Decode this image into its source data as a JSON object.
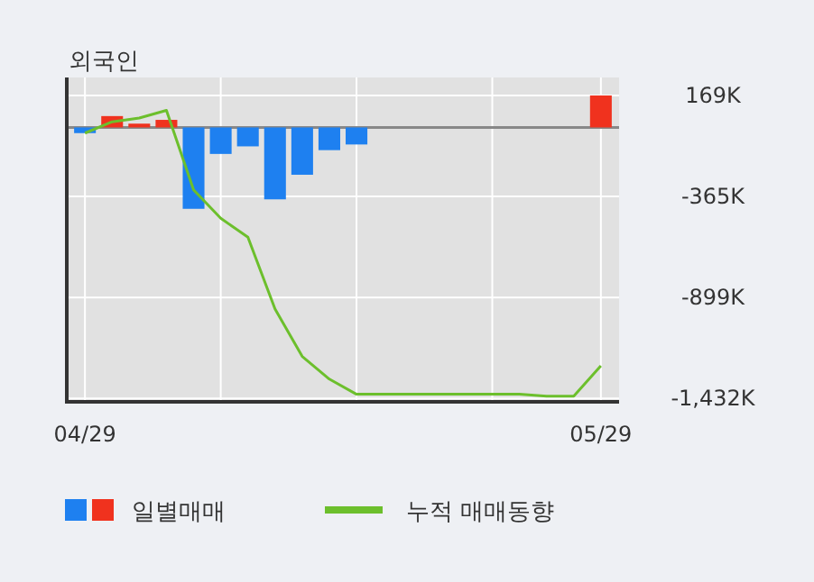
{
  "chart_data": {
    "type": "bar",
    "title": "외국인",
    "categories": [
      "04/29",
      null,
      null,
      null,
      null,
      null,
      null,
      null,
      null,
      null,
      null,
      null,
      null,
      null,
      null,
      null,
      null,
      null,
      null,
      "05/29"
    ],
    "series": [
      {
        "name": "일별매매",
        "colors": [
          "#1e80f0",
          "#f0321e",
          "#f0321e",
          "#f0321e",
          "#1e80f0",
          "#1e80f0",
          "#1e80f0",
          "#1e80f0",
          "#1e80f0",
          "#1e80f0",
          "#1e80f0",
          null,
          null,
          null,
          null,
          null,
          null,
          null,
          null,
          "#f0321e"
        ],
        "values": [
          -30,
          60,
          20,
          40,
          -430,
          -140,
          -100,
          -380,
          -250,
          -120,
          -90,
          null,
          null,
          null,
          null,
          null,
          null,
          null,
          null,
          169
        ]
      },
      {
        "name": "누적 매매동향",
        "type": "line",
        "color": "#6cbf2c",
        "values": [
          -30,
          30,
          50,
          90,
          -330,
          -480,
          -580,
          -960,
          -1210,
          -1330,
          -1410,
          -1410,
          -1410,
          -1410,
          -1410,
          -1410,
          -1410,
          -1420,
          -1420,
          -1260
        ]
      }
    ],
    "ylim": [
      -1450,
      264
    ],
    "yticks": [
      {
        "value": 169,
        "label": "169K"
      },
      {
        "value": -365,
        "label": "-365K"
      },
      {
        "value": -899,
        "label": "-899K"
      },
      {
        "value": -1432,
        "label": "-1,432K"
      }
    ],
    "grid": true,
    "legend": "bottom"
  }
}
